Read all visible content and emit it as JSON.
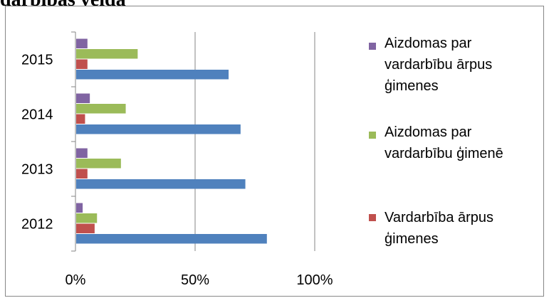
{
  "page": {
    "cut_title": "darbības veida"
  },
  "chart_data": {
    "type": "bar",
    "orientation": "horizontal",
    "categories": [
      "2012",
      "2013",
      "2014",
      "2015"
    ],
    "series": [
      {
        "name": "",
        "color": "#4F81BD",
        "values": [
          0.8,
          0.71,
          0.69,
          0.64
        ]
      },
      {
        "name": "Vardarbība ārpus ģimenes",
        "color": "#C0504D",
        "values": [
          0.08,
          0.05,
          0.04,
          0.05
        ]
      },
      {
        "name": "Aizdomas par vardarbību ģimenē",
        "color": "#9BBB59",
        "values": [
          0.09,
          0.19,
          0.21,
          0.26
        ]
      },
      {
        "name": "Aizdomas par vardarbību ārpus ģimenes",
        "color": "#8064A2",
        "values": [
          0.03,
          0.05,
          0.06,
          0.05
        ]
      }
    ],
    "xlim": [
      0,
      1
    ],
    "x_ticks": [
      "0%",
      "50%",
      "100%"
    ],
    "grid": true,
    "legend": "right",
    "legend_order": [
      3,
      2,
      1
    ]
  }
}
